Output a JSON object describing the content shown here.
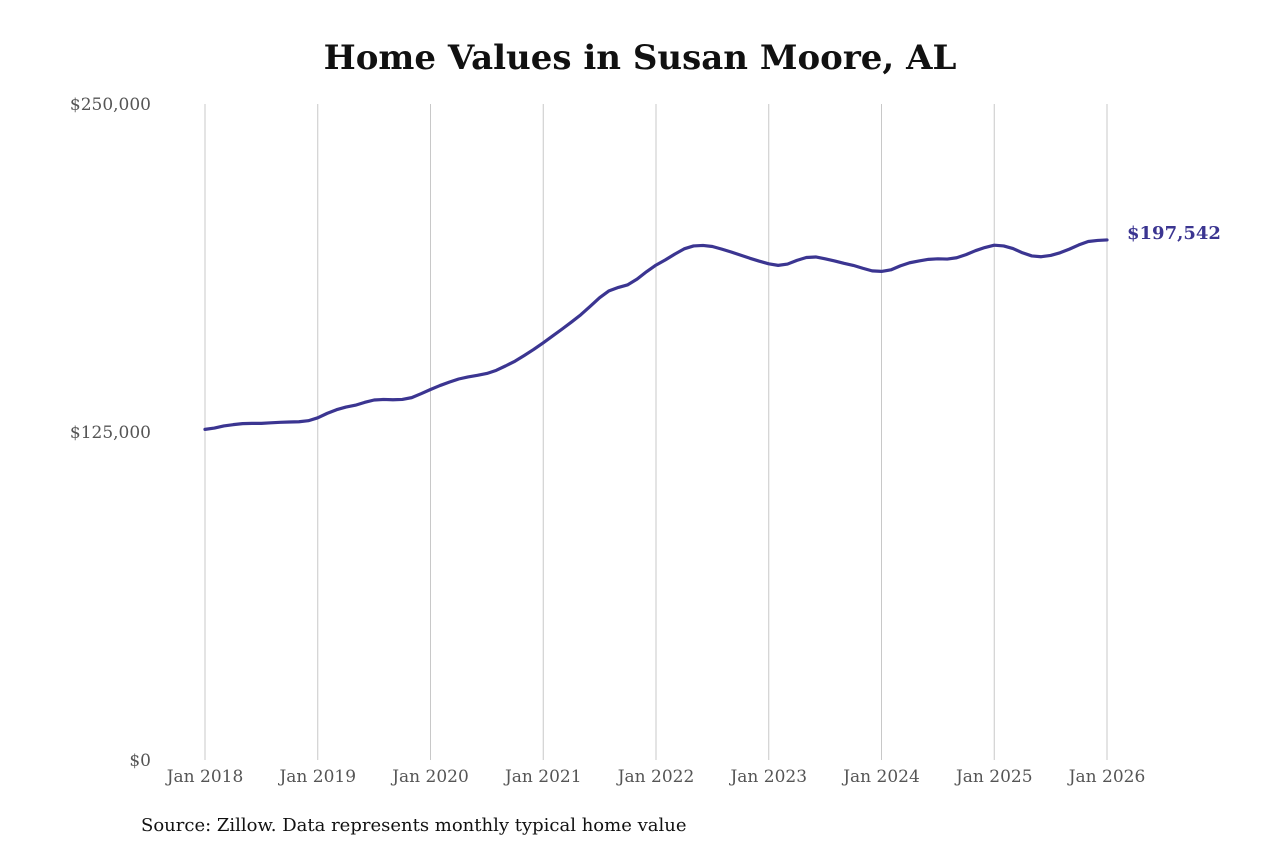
{
  "chart_data": {
    "type": "line",
    "title": "Home Values in Susan Moore, AL",
    "xlabel": "",
    "ylabel": "",
    "source_note": "Source: Zillow. Data represents monthly typical home value",
    "ylim": [
      0,
      250000
    ],
    "y_ticks": [
      {
        "value": 0,
        "label": "$0"
      },
      {
        "value": 125000,
        "label": "$125,000"
      },
      {
        "value": 250000,
        "label": "$250,000"
      }
    ],
    "x_range": [
      "2018-01",
      "2026-01"
    ],
    "x_ticks": [
      {
        "date": "2018-01",
        "label": "Jan 2018"
      },
      {
        "date": "2019-01",
        "label": "Jan 2019"
      },
      {
        "date": "2020-01",
        "label": "Jan 2020"
      },
      {
        "date": "2021-01",
        "label": "Jan 2021"
      },
      {
        "date": "2022-01",
        "label": "Jan 2022"
      },
      {
        "date": "2023-01",
        "label": "Jan 2023"
      },
      {
        "date": "2024-01",
        "label": "Jan 2024"
      },
      {
        "date": "2025-01",
        "label": "Jan 2025"
      },
      {
        "date": "2026-01",
        "label": "Jan 2026"
      }
    ],
    "grid": {
      "vertical": true,
      "horizontal": false
    },
    "colors": {
      "line": "#3b3591",
      "grid": "#c8c8c8"
    },
    "end_label": "$197,542",
    "series": [
      {
        "points": [
          [
            "2018-01",
            126000
          ],
          [
            "2018-02",
            126500
          ],
          [
            "2018-03",
            127300
          ],
          [
            "2018-04",
            127800
          ],
          [
            "2018-05",
            128200
          ],
          [
            "2018-06",
            128300
          ],
          [
            "2018-07",
            128300
          ],
          [
            "2018-08",
            128500
          ],
          [
            "2018-09",
            128700
          ],
          [
            "2018-10",
            128800
          ],
          [
            "2018-11",
            128900
          ],
          [
            "2018-12",
            129300
          ],
          [
            "2019-01",
            130400
          ],
          [
            "2019-02",
            132100
          ],
          [
            "2019-03",
            133500
          ],
          [
            "2019-04",
            134500
          ],
          [
            "2019-05",
            135200
          ],
          [
            "2019-06",
            136300
          ],
          [
            "2019-07",
            137200
          ],
          [
            "2019-08",
            137400
          ],
          [
            "2019-09",
            137300
          ],
          [
            "2019-10",
            137400
          ],
          [
            "2019-11",
            138100
          ],
          [
            "2019-12",
            139600
          ],
          [
            "2020-01",
            141200
          ],
          [
            "2020-02",
            142700
          ],
          [
            "2020-03",
            144000
          ],
          [
            "2020-04",
            145200
          ],
          [
            "2020-05",
            146000
          ],
          [
            "2020-06",
            146600
          ],
          [
            "2020-07",
            147300
          ],
          [
            "2020-08",
            148500
          ],
          [
            "2020-09",
            150200
          ],
          [
            "2020-10",
            152000
          ],
          [
            "2020-11",
            154200
          ],
          [
            "2020-12",
            156500
          ],
          [
            "2021-01",
            159000
          ],
          [
            "2021-02",
            161600
          ],
          [
            "2021-03",
            164200
          ],
          [
            "2021-04",
            166900
          ],
          [
            "2021-05",
            169700
          ],
          [
            "2021-06",
            172900
          ],
          [
            "2021-07",
            176200
          ],
          [
            "2021-08",
            178800
          ],
          [
            "2021-09",
            180100
          ],
          [
            "2021-10",
            181100
          ],
          [
            "2021-11",
            183300
          ],
          [
            "2021-12",
            186100
          ],
          [
            "2022-01",
            188600
          ],
          [
            "2022-02",
            190600
          ],
          [
            "2022-03",
            192800
          ],
          [
            "2022-04",
            194800
          ],
          [
            "2022-05",
            195900
          ],
          [
            "2022-06",
            196100
          ],
          [
            "2022-07",
            195700
          ],
          [
            "2022-08",
            194700
          ],
          [
            "2022-09",
            193600
          ],
          [
            "2022-10",
            192400
          ],
          [
            "2022-11",
            191200
          ],
          [
            "2022-12",
            190100
          ],
          [
            "2023-01",
            189100
          ],
          [
            "2023-02",
            188500
          ],
          [
            "2023-03",
            189000
          ],
          [
            "2023-04",
            190400
          ],
          [
            "2023-05",
            191500
          ],
          [
            "2023-06",
            191700
          ],
          [
            "2023-07",
            191000
          ],
          [
            "2023-08",
            190200
          ],
          [
            "2023-09",
            189300
          ],
          [
            "2023-10",
            188500
          ],
          [
            "2023-11",
            187400
          ],
          [
            "2023-12",
            186400
          ],
          [
            "2024-01",
            186200
          ],
          [
            "2024-02",
            186800
          ],
          [
            "2024-03",
            188300
          ],
          [
            "2024-04",
            189500
          ],
          [
            "2024-05",
            190200
          ],
          [
            "2024-06",
            190800
          ],
          [
            "2024-07",
            191000
          ],
          [
            "2024-08",
            190900
          ],
          [
            "2024-09",
            191400
          ],
          [
            "2024-10",
            192600
          ],
          [
            "2024-11",
            194100
          ],
          [
            "2024-12",
            195300
          ],
          [
            "2025-01",
            196200
          ],
          [
            "2025-02",
            195900
          ],
          [
            "2025-03",
            194900
          ],
          [
            "2025-04",
            193300
          ],
          [
            "2025-05",
            192100
          ],
          [
            "2025-06",
            191800
          ],
          [
            "2025-07",
            192300
          ],
          [
            "2025-08",
            193300
          ],
          [
            "2025-09",
            194700
          ],
          [
            "2025-10",
            196300
          ],
          [
            "2025-11",
            197600
          ],
          [
            "2025-12",
            198000
          ],
          [
            "2026-01",
            198200
          ]
        ]
      }
    ]
  }
}
